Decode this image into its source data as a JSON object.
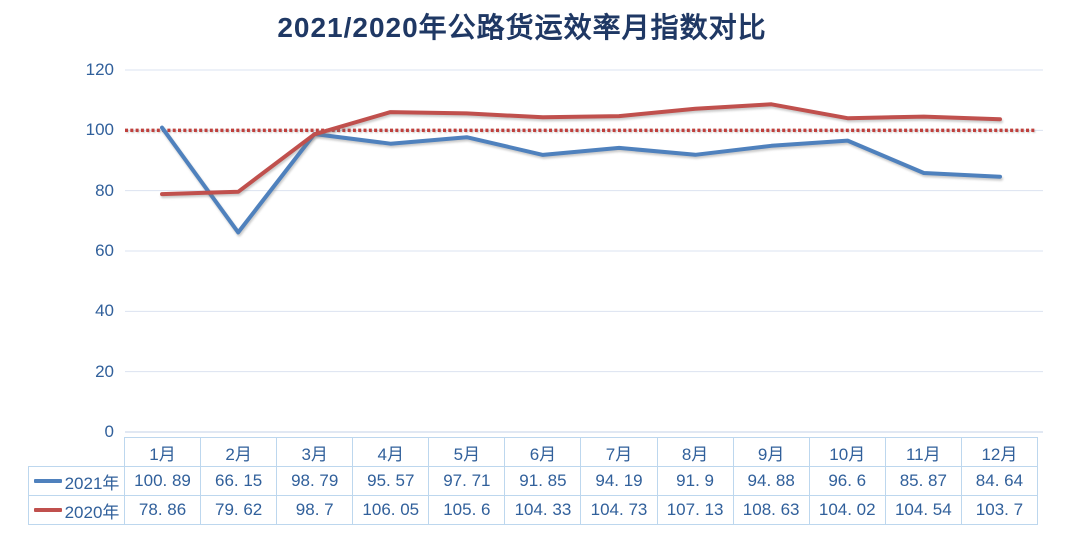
{
  "chart": {
    "title": "2021/2020年公路货运效率月指数对比"
  },
  "chart_data": {
    "type": "line",
    "title": "2021/2020年公路货运效率月指数对比",
    "categories": [
      "1月",
      "2月",
      "3月",
      "4月",
      "5月",
      "6月",
      "7月",
      "8月",
      "9月",
      "10月",
      "11月",
      "12月"
    ],
    "series": [
      {
        "name": "2021年",
        "color": "#4f81bd",
        "values": [
          100.89,
          66.15,
          98.79,
          95.57,
          97.71,
          91.85,
          94.19,
          91.9,
          94.88,
          96.6,
          85.87,
          84.64
        ]
      },
      {
        "name": "2020年",
        "color": "#c0504d",
        "values": [
          78.86,
          79.62,
          98.7,
          106.05,
          105.6,
          104.33,
          104.73,
          107.13,
          108.63,
          104.02,
          104.54,
          103.7
        ]
      }
    ],
    "reference_line": {
      "value": 100,
      "style": "dotted",
      "color": "#c0403c"
    },
    "xlabel": "",
    "ylabel": "",
    "ylim": [
      0,
      120
    ],
    "y_ticks": [
      0,
      20,
      40,
      60,
      80,
      100,
      120
    ],
    "grid": "horizontal",
    "legend_position": "table-left-column"
  },
  "table": {
    "header_labels": [
      "1月",
      "2月",
      "3月",
      "4月",
      "5月",
      "6月",
      "7月",
      "8月",
      "9月",
      "10月",
      "11月",
      "12月"
    ],
    "rows": [
      {
        "label": "2021年",
        "marker_color": "#4f81bd",
        "values": [
          "100. 89",
          "66. 15",
          "98. 79",
          "95. 57",
          "97. 71",
          "91. 85",
          "94. 19",
          "91. 9",
          "94. 88",
          "96. 6",
          "85. 87",
          "84. 64"
        ]
      },
      {
        "label": "2020年",
        "marker_color": "#c0504d",
        "values": [
          "78. 86",
          "79. 62",
          "98. 7",
          "106. 05",
          "105. 6",
          "104. 33",
          "104. 73",
          "107. 13",
          "108. 63",
          "104. 02",
          "104. 54",
          "103. 7"
        ]
      }
    ]
  },
  "colors": {
    "title_text": "#1f3864",
    "axis_text": "#31609b",
    "gridline": "#dbe3f0",
    "table_border": "#bdd7ee",
    "series_2021": "#4f81bd",
    "series_2020": "#c0504d",
    "reference_dotted": "#c0403c",
    "background": "#ffffff"
  }
}
